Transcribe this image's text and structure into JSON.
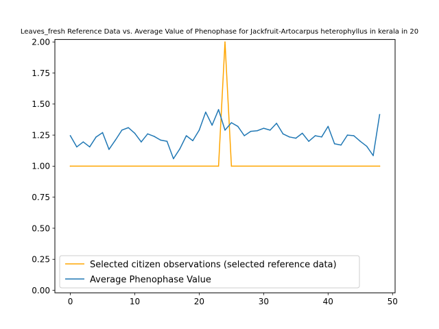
{
  "chart_data": {
    "type": "line",
    "title": "Leaves_fresh Reference Data vs. Average Value of Phenophase for Jackfruit-Artocarpus heterophyllus in kerala in 20",
    "xlabel": "",
    "ylabel": "",
    "xlim": [
      -2.4,
      50.4
    ],
    "ylim": [
      -0.02,
      2.02
    ],
    "xticks": [
      0,
      10,
      20,
      30,
      40,
      50
    ],
    "yticks": [
      0.0,
      0.25,
      0.5,
      0.75,
      1.0,
      1.25,
      1.5,
      1.75,
      2.0
    ],
    "ytick_labels": [
      "0.00",
      "0.25",
      "0.50",
      "0.75",
      "1.00",
      "1.25",
      "1.50",
      "1.75",
      "2.00"
    ],
    "grid": false,
    "legend_position": "lower-left",
    "series": [
      {
        "name": "Selected citizen observations (selected reference data)",
        "color": "#ffa500",
        "x": [
          0,
          23,
          24,
          25,
          48
        ],
        "y": [
          1.0,
          1.0,
          2.0,
          1.0,
          1.0
        ]
      },
      {
        "name": "Average Phenophase Value",
        "color": "#1f77b4",
        "x": [
          0,
          1,
          2,
          3,
          4,
          5,
          6,
          7,
          8,
          9,
          10,
          11,
          12,
          13,
          14,
          15,
          16,
          17,
          18,
          19,
          20,
          21,
          22,
          23,
          24,
          25,
          26,
          27,
          28,
          29,
          30,
          31,
          32,
          33,
          34,
          35,
          36,
          37,
          38,
          39,
          40,
          41,
          42,
          43,
          44,
          45,
          46,
          47,
          48
        ],
        "y": [
          1.245,
          1.155,
          1.195,
          1.155,
          1.235,
          1.27,
          1.135,
          1.21,
          1.29,
          1.31,
          1.265,
          1.195,
          1.26,
          1.24,
          1.21,
          1.2,
          1.06,
          1.14,
          1.245,
          1.205,
          1.29,
          1.435,
          1.33,
          1.455,
          1.29,
          1.35,
          1.32,
          1.245,
          1.28,
          1.285,
          1.305,
          1.29,
          1.345,
          1.26,
          1.235,
          1.225,
          1.265,
          1.2,
          1.245,
          1.235,
          1.32,
          1.18,
          1.17,
          1.25,
          1.245,
          1.2,
          1.16,
          1.085,
          1.415
        ]
      }
    ]
  }
}
